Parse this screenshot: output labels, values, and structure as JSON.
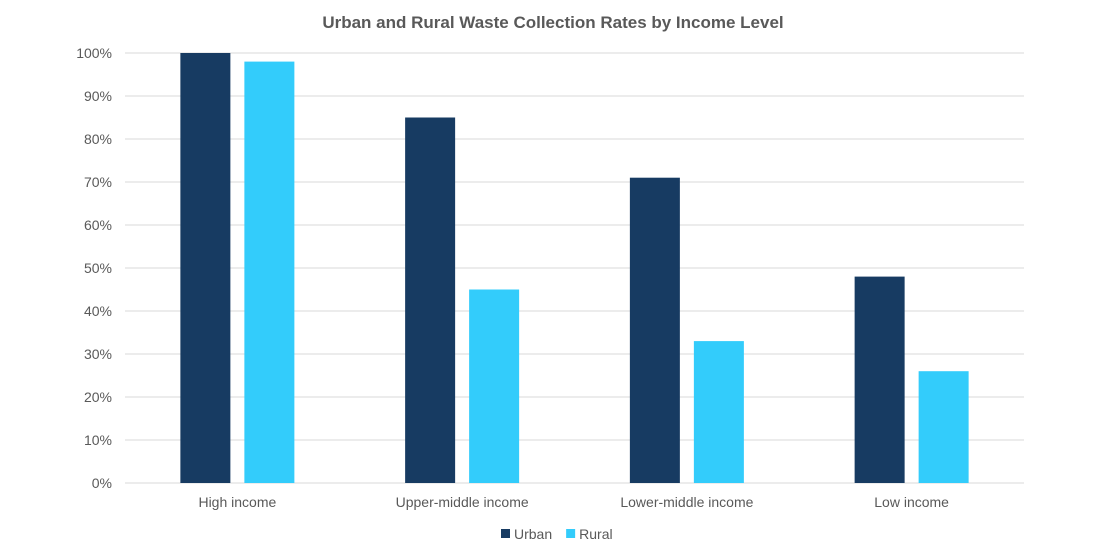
{
  "chart_data": {
    "type": "bar",
    "title": "Urban and Rural Waste Collection Rates by Income Level",
    "xlabel": "",
    "ylabel": "",
    "categories": [
      "High income",
      "Upper-middle income",
      "Lower-middle income",
      "Low income"
    ],
    "series": [
      {
        "name": "Urban",
        "values": [
          100,
          85,
          71,
          48
        ],
        "color": "#173b62"
      },
      {
        "name": "Rural",
        "values": [
          98,
          45,
          33,
          26
        ],
        "color": "#33ccfb"
      }
    ],
    "ylim": [
      0,
      100
    ],
    "yticks": [
      "0%",
      "10%",
      "20%",
      "30%",
      "40%",
      "50%",
      "60%",
      "70%",
      "80%",
      "90%",
      "100%"
    ],
    "grid": true,
    "legend": "bottom"
  }
}
